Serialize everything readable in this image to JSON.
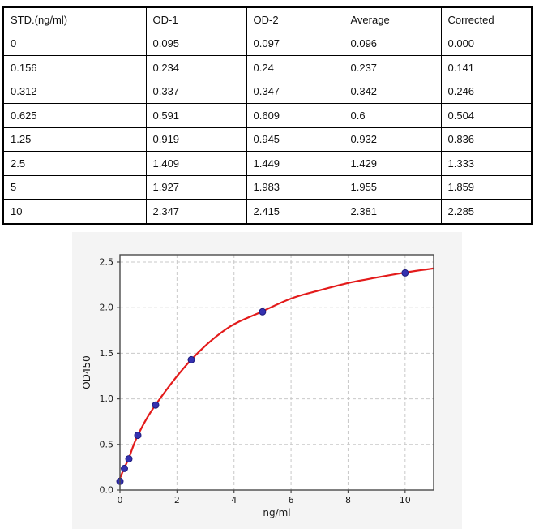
{
  "table": {
    "headers": [
      "STD.(ng/ml)",
      "OD-1",
      "OD-2",
      "Average",
      "Corrected"
    ],
    "rows": [
      [
        "0",
        "0.095",
        "0.097",
        "0.096",
        "0.000"
      ],
      [
        "0.156",
        "0.234",
        "0.24",
        "0.237",
        "0.141"
      ],
      [
        "0.312",
        "0.337",
        "0.347",
        "0.342",
        "0.246"
      ],
      [
        "0.625",
        "0.591",
        "0.609",
        "0.6",
        "0.504"
      ],
      [
        "1.25",
        "0.919",
        "0.945",
        "0.932",
        "0.836"
      ],
      [
        "2.5",
        "1.409",
        "1.449",
        "1.429",
        "1.333"
      ],
      [
        "5",
        "1.927",
        "1.983",
        "1.955",
        "1.859"
      ],
      [
        "10",
        "2.347",
        "2.415",
        "2.381",
        "2.285"
      ]
    ]
  },
  "chart_data": {
    "type": "scatter",
    "title": "",
    "xlabel": "ng/ml",
    "ylabel": "OD450",
    "x": [
      0,
      0.156,
      0.312,
      0.625,
      1.25,
      2.5,
      5,
      10
    ],
    "y": [
      0.096,
      0.237,
      0.342,
      0.6,
      0.932,
      1.429,
      1.955,
      2.381
    ],
    "fit_curve_points": [
      [
        0,
        0.13
      ],
      [
        0.156,
        0.245
      ],
      [
        0.312,
        0.35
      ],
      [
        0.625,
        0.6
      ],
      [
        1.25,
        0.935
      ],
      [
        2.5,
        1.43
      ],
      [
        3.75,
        1.77
      ],
      [
        5,
        1.96
      ],
      [
        6,
        2.1
      ],
      [
        7,
        2.19
      ],
      [
        8,
        2.27
      ],
      [
        9,
        2.33
      ],
      [
        10,
        2.385
      ],
      [
        11,
        2.43
      ]
    ],
    "xlim": [
      0,
      11
    ],
    "ylim": [
      0,
      2.58
    ],
    "x_ticks": [
      0,
      2,
      4,
      6,
      8,
      10
    ],
    "y_ticks": [
      0,
      0.5,
      1,
      1.5,
      2,
      2.5
    ],
    "x_tick_labels": [
      "0",
      "2",
      "4",
      "6",
      "8",
      "10"
    ],
    "y_tick_labels": [
      "0.0",
      "0.5",
      "1.0",
      "1.5",
      "2.0",
      "2.5"
    ],
    "grid": true,
    "legend_position": "none",
    "colors": {
      "curve": "#e31b1b",
      "marker": "#3531b0",
      "marker_edge": "#1e1b7e",
      "figure_bg": "#f4f4f4",
      "plot_bg": "#ffffff",
      "grid": "#c9c9c9",
      "spine": "#4a4a4a",
      "tick_text": "#1a1a1a"
    }
  }
}
